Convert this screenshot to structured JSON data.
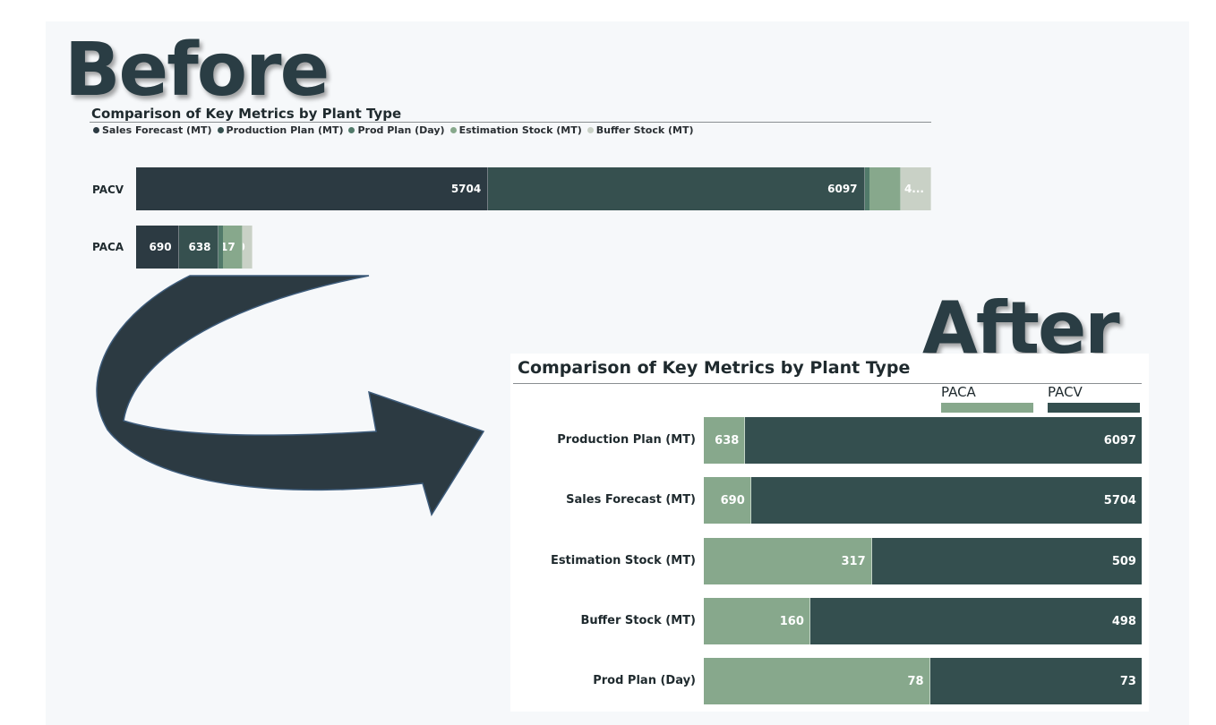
{
  "labels": {
    "before": "Before",
    "after": "After"
  },
  "colors": {
    "sales_forecast": "#2c3a42",
    "production_plan": "#36504f",
    "prod_plan_day": "#517a6a",
    "estimation_stock": "#87a88c",
    "buffer_stock": "#c9d1c6",
    "paca": "#87a88c",
    "pacv": "#344f4f",
    "arrow": "#2c3a42"
  },
  "chart_data": [
    {
      "type": "bar",
      "orientation": "horizontal",
      "stacked": true,
      "title": "Comparison of Key Metrics by Plant Type",
      "legend_position": "top-left",
      "categories": [
        "PACV",
        "PACA"
      ],
      "series": [
        {
          "name": "Sales Forecast (MT)",
          "values": [
            5704,
            690
          ],
          "labels": [
            "5704",
            "690"
          ]
        },
        {
          "name": "Production Plan (MT)",
          "values": [
            6097,
            638
          ],
          "labels": [
            "6097",
            "638"
          ]
        },
        {
          "name": "Prod Plan (Day)",
          "values": [
            73,
            78
          ],
          "labels": [
            "",
            "78"
          ]
        },
        {
          "name": "Estimation Stock (MT)",
          "values": [
            509,
            317
          ],
          "labels": [
            "",
            "317"
          ]
        },
        {
          "name": "Buffer Stock (MT)",
          "values": [
            498,
            160
          ],
          "labels": [
            "4...",
            "160"
          ]
        }
      ]
    },
    {
      "type": "bar",
      "orientation": "horizontal",
      "stacked": true,
      "percent_stacked": true,
      "title": "Comparison of Key Metrics by Plant Type",
      "legend_position": "top-right",
      "categories": [
        "Production Plan (MT)",
        "Sales Forecast (MT)",
        "Estimation Stock (MT)",
        "Buffer Stock (MT)",
        "Prod Plan (Day)"
      ],
      "series": [
        {
          "name": "PACA",
          "values": [
            638,
            690,
            317,
            160,
            78
          ]
        },
        {
          "name": "PACV",
          "values": [
            6097,
            5704,
            509,
            498,
            73
          ]
        }
      ]
    }
  ]
}
